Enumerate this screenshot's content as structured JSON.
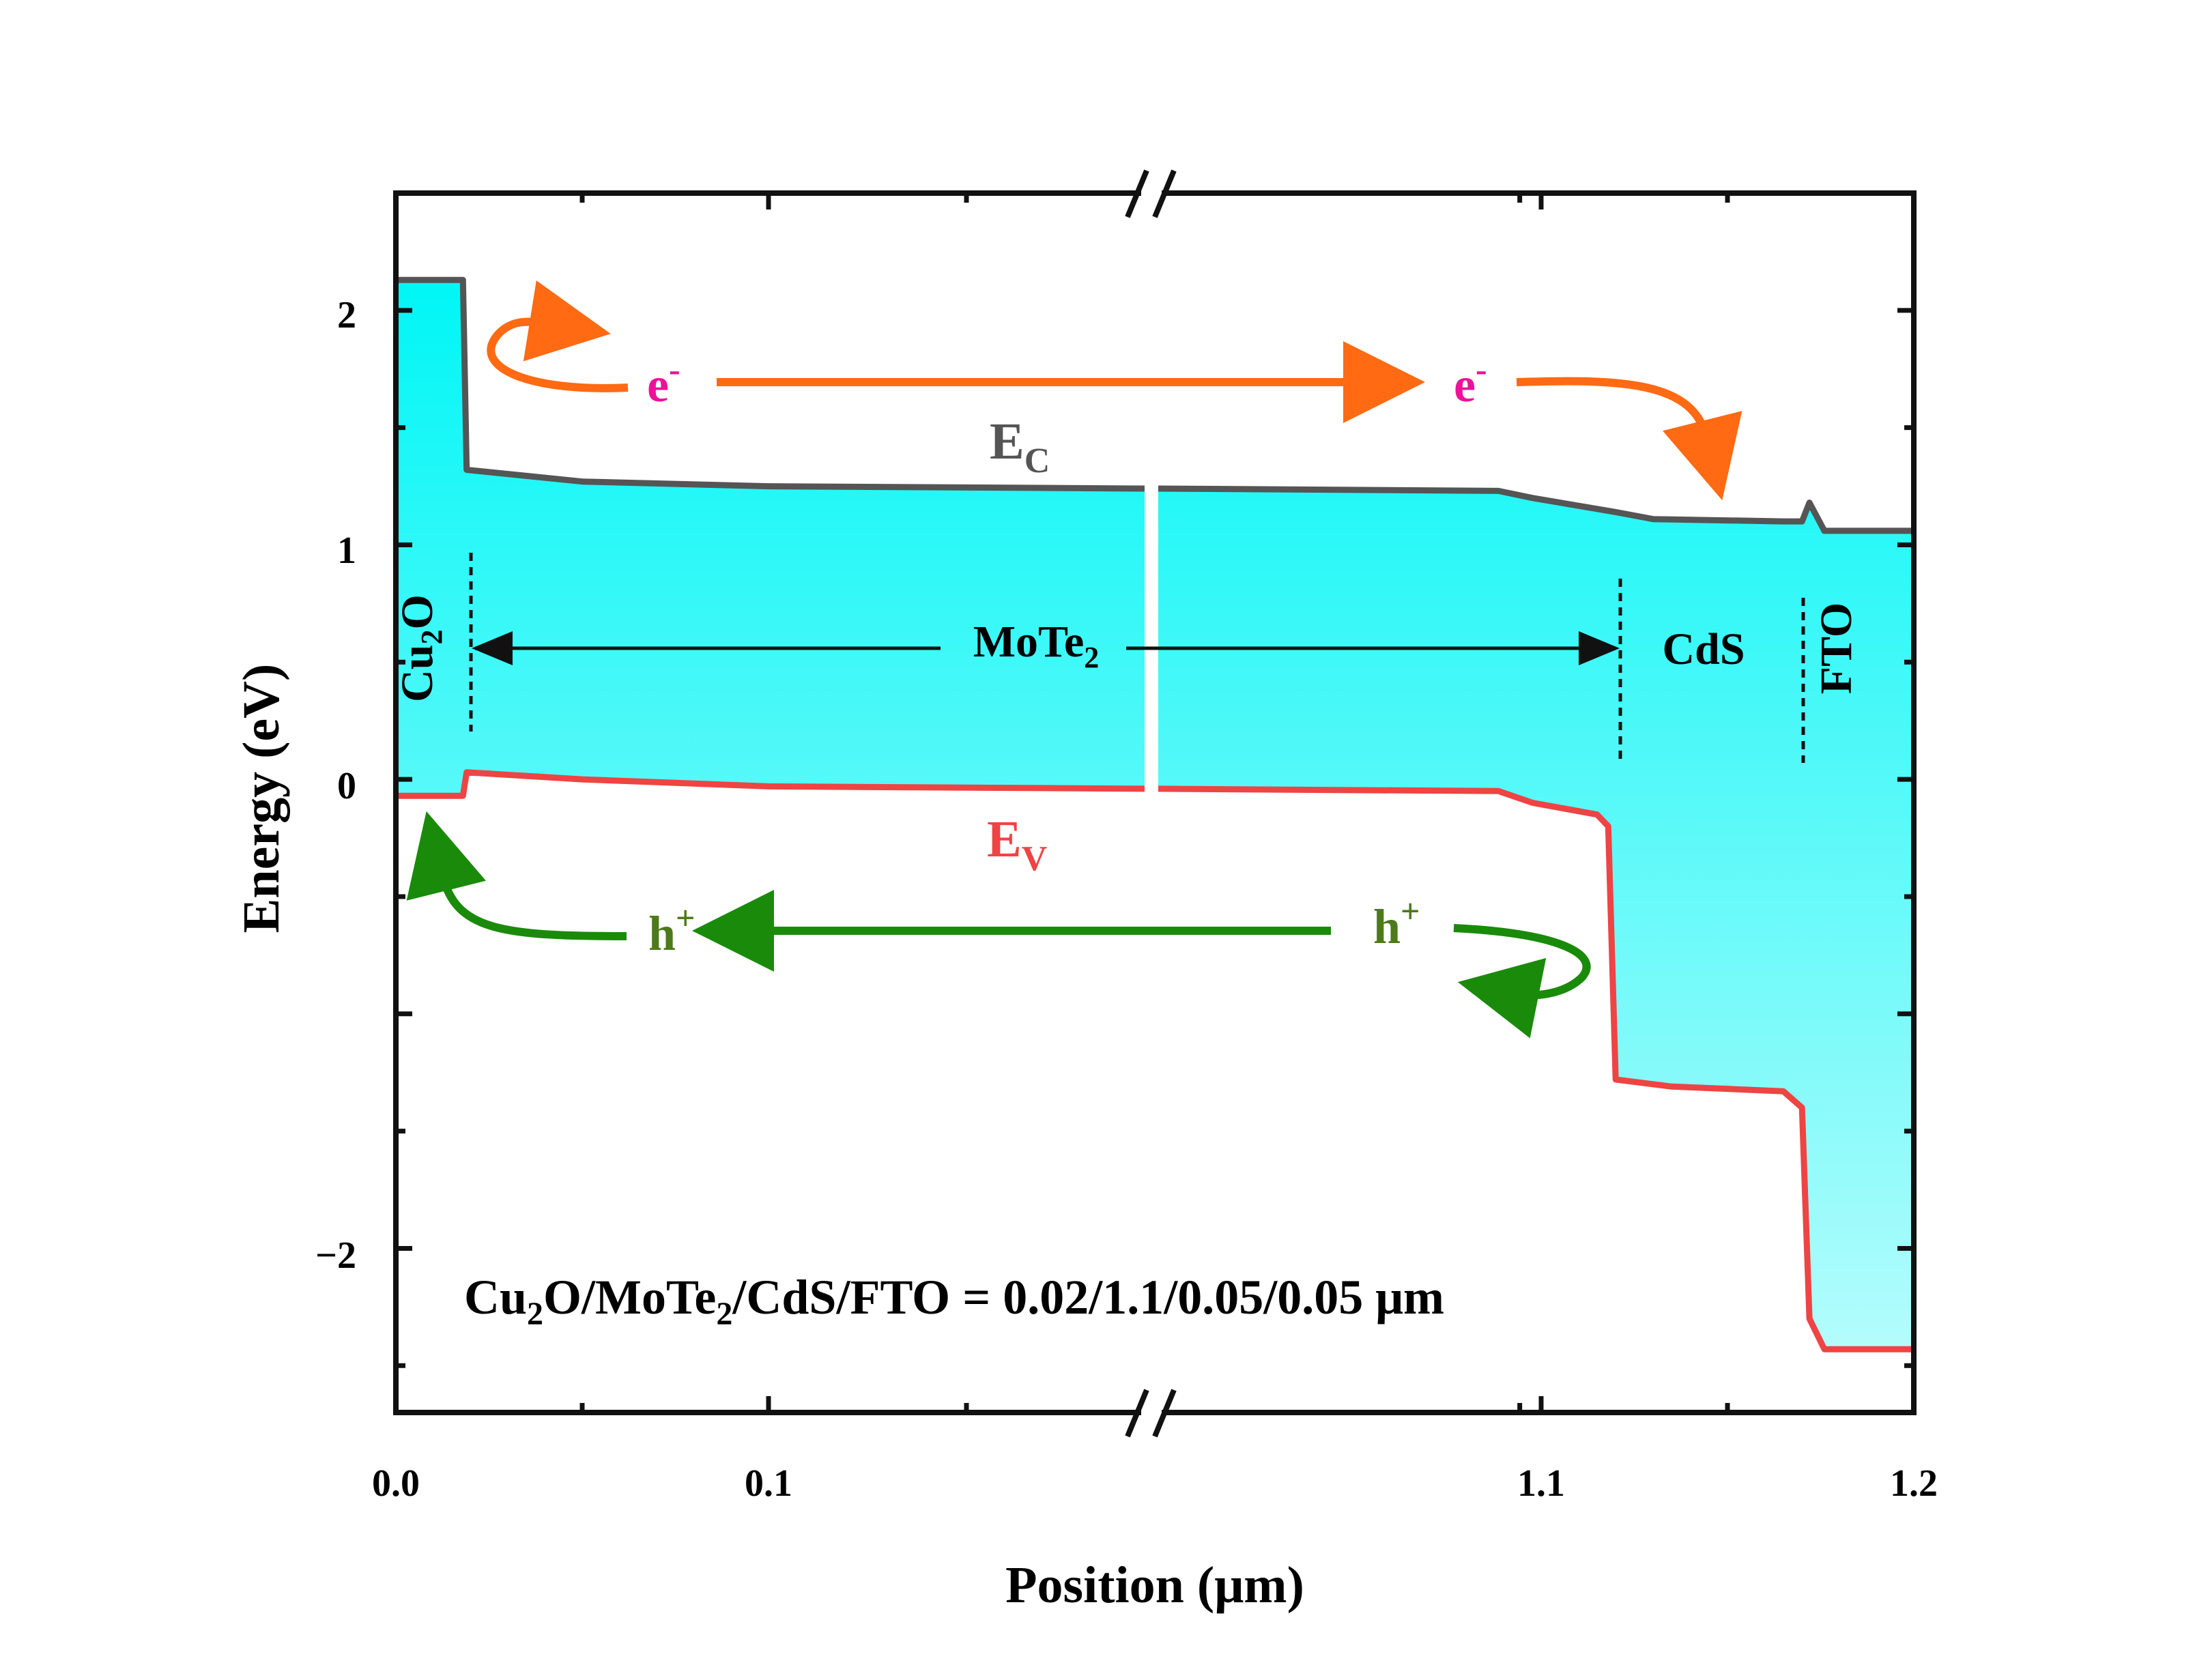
{
  "chart_data": {
    "type": "line",
    "title": "",
    "xlabel": "Position (μm)",
    "ylabel": "Energy (eV)",
    "xlim": [
      0,
      1.2
    ],
    "ylim": [
      -2.7,
      2.5
    ],
    "axis_break": "x",
    "x_ticks": [
      "0.0",
      "0.1",
      "1.1",
      "1.2"
    ],
    "y_ticks": [
      "2",
      "1",
      "0",
      "−2"
    ],
    "series": [
      {
        "name": "E_C",
        "label_main": "E",
        "label_sub": "C",
        "color": "#555555",
        "points": [
          [
            0.0,
            2.13
          ],
          [
            0.018,
            2.13
          ],
          [
            0.019,
            1.32
          ],
          [
            0.05,
            1.27
          ],
          [
            0.1,
            1.25
          ],
          [
            0.195,
            1.24
          ],
          [
            0.205,
            1.24
          ],
          [
            1.0,
            1.23
          ],
          [
            1.08,
            1.2
          ],
          [
            1.12,
            1.14
          ],
          [
            1.13,
            1.11
          ],
          [
            1.165,
            1.1
          ],
          [
            1.17,
            1.1
          ],
          [
            1.172,
            1.18
          ],
          [
            1.176,
            1.06
          ],
          [
            1.2,
            1.06
          ]
        ]
      },
      {
        "name": "E_V",
        "label_main": "E",
        "label_sub": "V",
        "color": "#ee4444",
        "points": [
          [
            0.0,
            -0.07
          ],
          [
            0.018,
            -0.07
          ],
          [
            0.019,
            0.03
          ],
          [
            0.05,
            0.0
          ],
          [
            0.1,
            -0.03
          ],
          [
            0.195,
            -0.04
          ],
          [
            0.205,
            -0.04
          ],
          [
            1.0,
            -0.05
          ],
          [
            1.08,
            -0.1
          ],
          [
            1.115,
            -0.15
          ],
          [
            1.118,
            -0.2
          ],
          [
            1.12,
            -1.28
          ],
          [
            1.135,
            -1.31
          ],
          [
            1.165,
            -1.33
          ],
          [
            1.17,
            -1.4
          ],
          [
            1.172,
            -2.3
          ],
          [
            1.176,
            -2.43
          ],
          [
            1.2,
            -2.43
          ]
        ]
      }
    ],
    "fill_color_top": "#00f6f6",
    "fill_color_bottom": "#b4fcfc",
    "layer_boundaries": [
      0.02,
      1.12,
      1.17
    ],
    "layers": [
      {
        "name": "Cu",
        "sub": "2",
        "suffix": "O"
      },
      {
        "name": "MoTe",
        "sub": "2",
        "suffix": ""
      },
      {
        "name": "CdS",
        "sub": "",
        "suffix": ""
      },
      {
        "name": "FTO",
        "sub": "",
        "suffix": ""
      }
    ],
    "annotations": {
      "electron": {
        "main": "e",
        "sup": "-",
        "color": "#ee1199",
        "arrow_color": "#ff6a13"
      },
      "hole": {
        "main": "h",
        "sup": "+",
        "color": "#4d7a1a",
        "arrow_color": "#1a8a0a"
      },
      "thickness": {
        "p1": "Cu",
        "s1": "2",
        "p2": "O/MoTe",
        "s2": "2",
        "p3": "/CdS/FTO = 0.02/1.1/0.05/0.05 μm"
      }
    }
  }
}
